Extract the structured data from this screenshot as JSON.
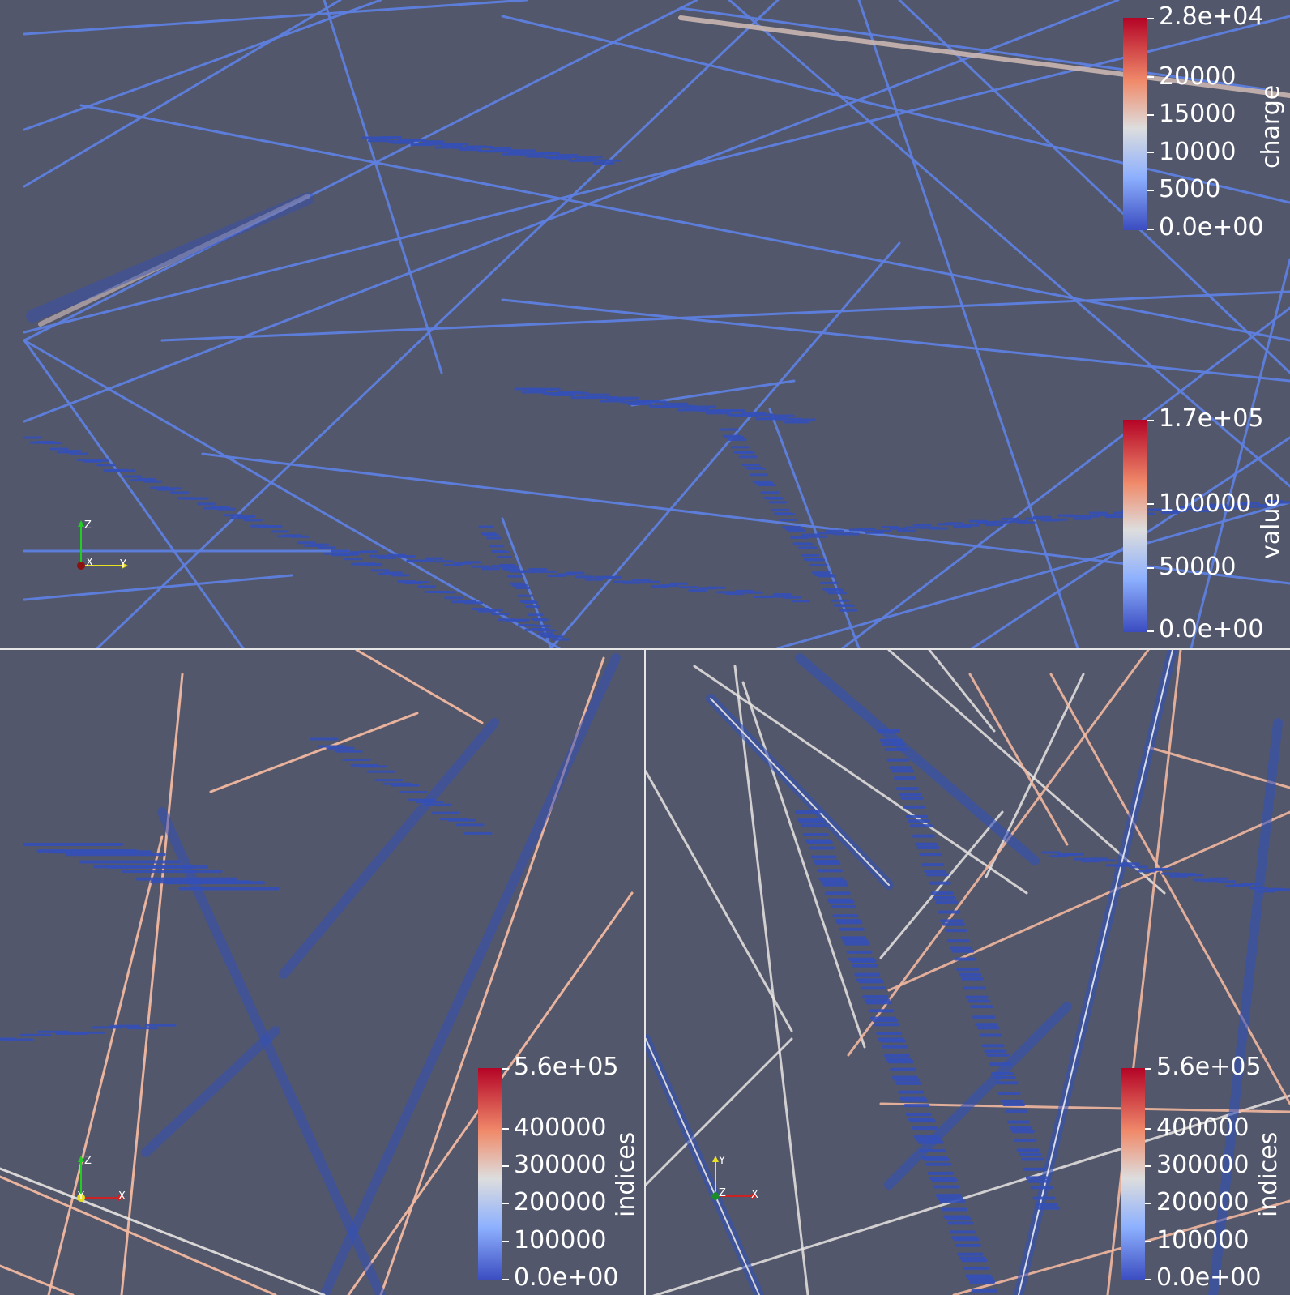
{
  "views": {
    "top": {
      "legends": [
        {
          "title": "charge",
          "ticks": [
            "2.8e+04",
            "20000",
            "15000",
            "10000",
            "5000",
            "0.0e+00"
          ]
        },
        {
          "title": "value",
          "ticks": [
            "1.7e+05",
            "100000",
            "50000",
            "0.0e+00"
          ]
        }
      ],
      "axes": {
        "up": "Z",
        "origin": "X",
        "right": "Y"
      }
    },
    "bottom_left": {
      "legend": {
        "title": "indices",
        "ticks": [
          "5.6e+05",
          "400000",
          "300000",
          "200000",
          "100000",
          "0.0e+00"
        ]
      },
      "axes": {
        "up": "Z",
        "origin": "Y",
        "right": "X"
      }
    },
    "bottom_right": {
      "legend": {
        "title": "indices",
        "ticks": [
          "5.6e+05",
          "400000",
          "300000",
          "200000",
          "100000",
          "0.0e+00"
        ]
      },
      "axes": {
        "up": "Y",
        "origin": "Z",
        "right": "X"
      }
    }
  },
  "colors": {
    "background": "#52576b",
    "colormap_low": "#3b4cc0",
    "colormap_mid": "#dddddd",
    "colormap_high": "#b40426",
    "track_blue": "#5e7fe0",
    "track_dark": "#3450b8",
    "track_peach": "#f2b8a0",
    "track_white": "#e8e4e2"
  }
}
